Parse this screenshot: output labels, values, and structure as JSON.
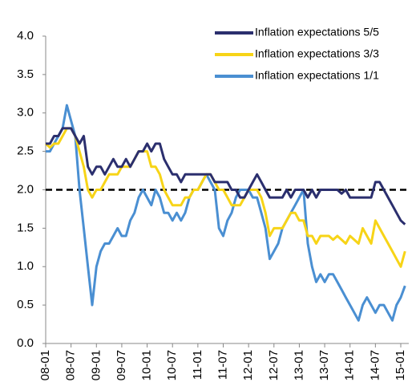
{
  "chart_data": {
    "type": "line",
    "x": [
      "2008-01",
      "2008-02",
      "2008-03",
      "2008-04",
      "2008-05",
      "2008-06",
      "2008-07",
      "2008-08",
      "2008-09",
      "2008-10",
      "2008-11",
      "2008-12",
      "2009-01",
      "2009-02",
      "2009-03",
      "2009-04",
      "2009-05",
      "2009-06",
      "2009-07",
      "2009-08",
      "2009-09",
      "2009-10",
      "2009-11",
      "2009-12",
      "2010-01",
      "2010-02",
      "2010-03",
      "2010-04",
      "2010-05",
      "2010-06",
      "2010-07",
      "2010-08",
      "2010-09",
      "2010-10",
      "2010-11",
      "2010-12",
      "2011-01",
      "2011-02",
      "2011-03",
      "2011-04",
      "2011-05",
      "2011-06",
      "2011-07",
      "2011-08",
      "2011-09",
      "2011-10",
      "2011-11",
      "2011-12",
      "2012-01",
      "2012-02",
      "2012-03",
      "2012-04",
      "2012-05",
      "2012-06",
      "2012-07",
      "2012-08",
      "2012-09",
      "2012-10",
      "2012-11",
      "2012-12",
      "2013-01",
      "2013-02",
      "2013-03",
      "2013-04",
      "2013-05",
      "2013-06",
      "2013-07",
      "2013-08",
      "2013-09",
      "2013-10",
      "2013-11",
      "2013-12",
      "2014-01",
      "2014-02",
      "2014-03",
      "2014-04",
      "2014-05",
      "2014-06",
      "2014-07",
      "2014-08",
      "2014-09",
      "2014-10",
      "2014-11",
      "2014-12",
      "2015-01",
      "2015-02"
    ],
    "series": [
      {
        "name": "Inflation expectations 5/5",
        "color": "#2b2f6e",
        "values": [
          2.6,
          2.6,
          2.7,
          2.7,
          2.8,
          2.8,
          2.8,
          2.7,
          2.6,
          2.7,
          2.3,
          2.2,
          2.3,
          2.3,
          2.2,
          2.3,
          2.4,
          2.3,
          2.3,
          2.4,
          2.3,
          2.4,
          2.5,
          2.5,
          2.6,
          2.5,
          2.6,
          2.6,
          2.4,
          2.3,
          2.2,
          2.2,
          2.1,
          2.2,
          2.2,
          2.2,
          2.2,
          2.2,
          2.2,
          2.2,
          2.1,
          2.1,
          2.1,
          2.1,
          2.0,
          2.0,
          1.9,
          1.9,
          2.0,
          2.1,
          2.2,
          2.1,
          2.0,
          1.9,
          1.9,
          1.9,
          1.9,
          2.0,
          1.9,
          2.0,
          2.0,
          2.0,
          1.9,
          2.0,
          1.9,
          2.0,
          2.0,
          2.0,
          2.0,
          2.0,
          1.95,
          2.0,
          1.9,
          1.9,
          1.9,
          1.9,
          1.9,
          1.9,
          2.1,
          2.1,
          2.0,
          1.9,
          1.8,
          1.7,
          1.6,
          1.55
        ]
      },
      {
        "name": "Inflation expectations 3/3",
        "color": "#f7d417",
        "values": [
          2.6,
          2.55,
          2.6,
          2.6,
          2.7,
          2.8,
          2.8,
          2.7,
          2.5,
          2.3,
          2.0,
          1.9,
          2.0,
          2.0,
          2.1,
          2.2,
          2.2,
          2.2,
          2.3,
          2.3,
          2.3,
          2.4,
          2.5,
          2.5,
          2.5,
          2.3,
          2.3,
          2.2,
          2.0,
          1.9,
          1.8,
          1.8,
          1.8,
          1.9,
          1.9,
          2.0,
          2.0,
          2.1,
          2.2,
          2.2,
          2.1,
          2.0,
          2.0,
          1.9,
          1.8,
          1.8,
          1.8,
          1.9,
          2.0,
          2.0,
          2.0,
          1.9,
          1.7,
          1.4,
          1.5,
          1.5,
          1.5,
          1.6,
          1.7,
          1.7,
          1.6,
          1.6,
          1.4,
          1.4,
          1.3,
          1.4,
          1.4,
          1.4,
          1.35,
          1.4,
          1.35,
          1.3,
          1.4,
          1.35,
          1.3,
          1.5,
          1.4,
          1.3,
          1.6,
          1.5,
          1.4,
          1.3,
          1.2,
          1.1,
          1.0,
          1.2
        ]
      },
      {
        "name": "Inflation expectations 1/1",
        "color": "#4a8fd2",
        "values": [
          2.5,
          2.5,
          2.6,
          2.7,
          2.8,
          3.1,
          2.9,
          2.7,
          2.0,
          1.5,
          1.0,
          0.5,
          1.0,
          1.2,
          1.3,
          1.3,
          1.4,
          1.5,
          1.4,
          1.4,
          1.6,
          1.7,
          1.9,
          2.0,
          1.9,
          1.8,
          2.0,
          1.9,
          1.7,
          1.7,
          1.6,
          1.7,
          1.6,
          1.7,
          1.9,
          2.0,
          2.0,
          2.1,
          2.2,
          2.1,
          2.0,
          1.5,
          1.4,
          1.6,
          1.7,
          1.9,
          2.0,
          2.0,
          2.0,
          1.9,
          1.9,
          1.7,
          1.5,
          1.1,
          1.2,
          1.3,
          1.5,
          1.6,
          1.7,
          1.8,
          1.9,
          2.0,
          1.3,
          1.0,
          0.8,
          0.9,
          0.8,
          0.9,
          0.9,
          0.8,
          0.7,
          0.6,
          0.5,
          0.4,
          0.3,
          0.5,
          0.6,
          0.5,
          0.4,
          0.5,
          0.5,
          0.4,
          0.3,
          0.5,
          0.6,
          0.75
        ]
      }
    ],
    "hline": 2,
    "ylim": [
      0,
      4
    ],
    "yticks": [
      {
        "value": 0,
        "label": "0.0"
      },
      0.5,
      {
        "value": 1,
        "label": "1.0"
      },
      1.5,
      {
        "value": 2,
        "label": "2.0"
      },
      2.5,
      {
        "value": 3,
        "label": "3.0"
      },
      3.5,
      {
        "value": 4,
        "label": "4.0"
      }
    ],
    "xticks": [
      {
        "value": "2008-01",
        "label": "08-01"
      },
      {
        "value": "2008-07",
        "label": "08-07"
      },
      {
        "value": "2009-01",
        "label": "09-01"
      },
      {
        "value": "2009-07",
        "label": "09-07"
      },
      {
        "value": "2010-01",
        "label": "10-01"
      },
      {
        "value": "2010-07",
        "label": "10-07"
      },
      {
        "value": "2011-01",
        "label": "11-01"
      },
      {
        "value": "2011-07",
        "label": "11-07"
      },
      {
        "value": "2012-01",
        "label": "12-01"
      },
      {
        "value": "2012-07",
        "label": "12-07"
      },
      {
        "value": "2013-01",
        "label": "13-01"
      },
      {
        "value": "2013-07",
        "label": "13-07"
      },
      {
        "value": "2014-01",
        "label": "14-01"
      },
      {
        "value": "2014-07",
        "label": "14-07"
      },
      {
        "value": "2015-01",
        "label": "15-01"
      }
    ],
    "legend": "upper right"
  }
}
